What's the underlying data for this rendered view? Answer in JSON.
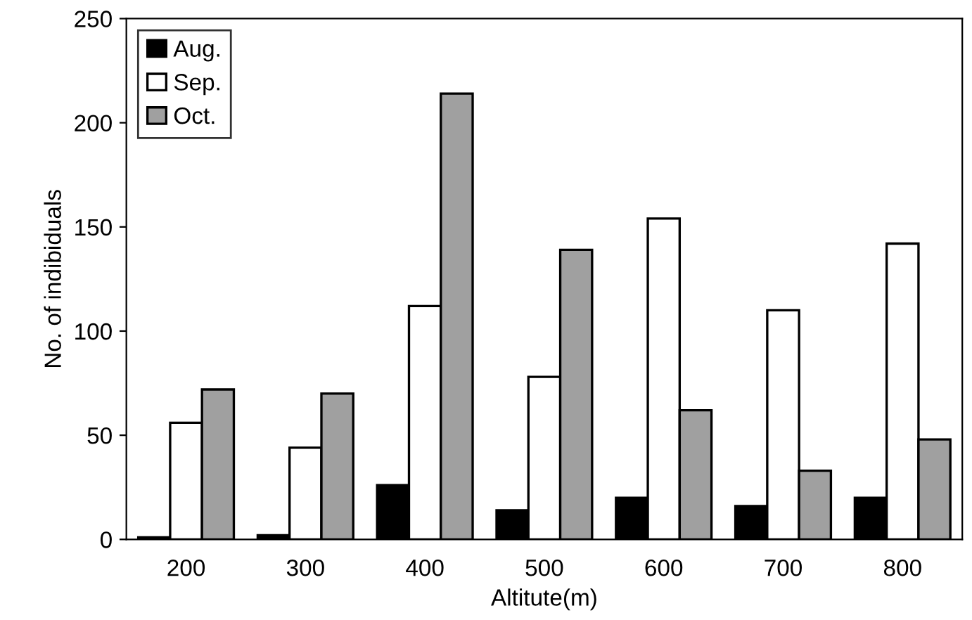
{
  "chart_data": {
    "type": "bar",
    "xlabel": "Altitute(m)",
    "ylabel": "No. of indibiduals",
    "categories": [
      "200",
      "300",
      "400",
      "500",
      "600",
      "700",
      "800"
    ],
    "series": [
      {
        "name": "Aug.",
        "color": "#000000",
        "values": [
          1,
          2,
          26,
          14,
          20,
          16,
          20
        ]
      },
      {
        "name": "Sep.",
        "color": "#ffffff",
        "values": [
          56,
          44,
          112,
          78,
          154,
          110,
          142
        ]
      },
      {
        "name": "Oct.",
        "color": "#a0a0a0",
        "values": [
          72,
          70,
          214,
          139,
          62,
          33,
          48
        ]
      }
    ],
    "ylim": [
      0,
      250
    ],
    "yticks": [
      0,
      50,
      100,
      150,
      200,
      250
    ],
    "grid": false,
    "legend": "top left"
  }
}
